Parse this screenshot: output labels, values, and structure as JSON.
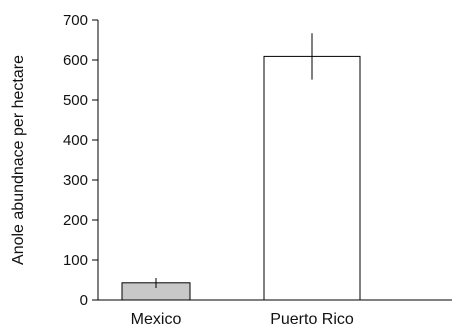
{
  "chart_data": {
    "type": "bar",
    "title": "",
    "xlabel": "",
    "ylabel": "Anole abundnace per hectare",
    "categories": [
      "Mexico",
      "Puerto Rico"
    ],
    "values": [
      43,
      609
    ],
    "error": [
      {
        "low": 30,
        "high": 55
      },
      {
        "low": 551,
        "high": 667
      }
    ],
    "bar_fills": [
      "#c8c8c8",
      "#ffffff"
    ],
    "bar_stroke": "#000000",
    "ylim": [
      0,
      700
    ],
    "yticks": [
      0,
      100,
      200,
      300,
      400,
      500,
      600,
      700
    ],
    "ytick_labels": [
      "0",
      "100",
      "200",
      "300",
      "400",
      "500",
      "600",
      "700"
    ],
    "grid": false,
    "legend": "none"
  }
}
